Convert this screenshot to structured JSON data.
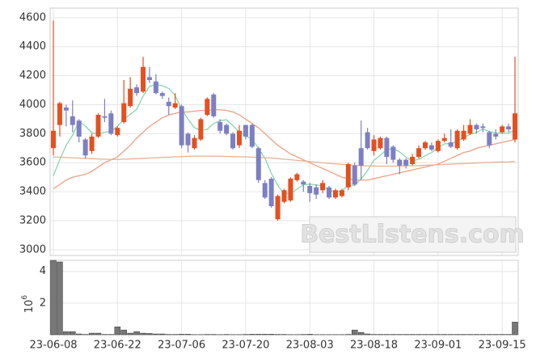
{
  "chart_data": {
    "type": "candlestick",
    "categories": [
      "23-06-08",
      null,
      null,
      null,
      null,
      null,
      null,
      null,
      null,
      null,
      "23-06-22",
      null,
      null,
      null,
      null,
      null,
      null,
      null,
      null,
      null,
      "23-07-06",
      null,
      null,
      null,
      null,
      null,
      null,
      null,
      null,
      null,
      "23-07-20",
      null,
      null,
      null,
      null,
      null,
      null,
      null,
      null,
      null,
      "23-08-03",
      null,
      null,
      null,
      null,
      null,
      null,
      null,
      null,
      null,
      "23-08-18",
      null,
      null,
      null,
      null,
      null,
      null,
      null,
      null,
      null,
      "23-09-01",
      null,
      null,
      null,
      null,
      null,
      null,
      null,
      null,
      null,
      "23-09-15",
      null,
      null
    ],
    "open": [
      3700,
      3860,
      3980,
      3920,
      3890,
      3760,
      3680,
      3780,
      3920,
      3940,
      3790,
      3880,
      3990,
      4120,
      4090,
      4190,
      4160,
      4080,
      4020,
      3980,
      3990,
      3800,
      3700,
      3760,
      3930,
      4070,
      3880,
      3860,
      3800,
      3720,
      3860,
      3860,
      3700,
      3460,
      3490,
      3210,
      3330,
      3340,
      3480,
      3470,
      3440,
      3430,
      3410,
      3430,
      3360,
      3370,
      3430,
      3580,
      3700,
      3810,
      3680,
      3700,
      3770,
      3710,
      3620,
      3620,
      3590,
      3640,
      3700,
      3720,
      3680,
      3750,
      3740,
      3700,
      3760,
      3800,
      3860,
      3850,
      3810,
      3800,
      3810,
      3850,
      3760
    ],
    "high": [
      4580,
      4020,
      4000,
      4030,
      3900,
      3770,
      3800,
      3940,
      4040,
      3960,
      3850,
      4170,
      4190,
      4140,
      4330,
      4260,
      4210,
      4090,
      4050,
      4080,
      4000,
      3810,
      3790,
      3910,
      4050,
      4080,
      3900,
      3870,
      3810,
      3860,
      3860,
      3870,
      3710,
      3480,
      3500,
      3380,
      3420,
      3500,
      3530,
      3480,
      3460,
      3450,
      3480,
      3440,
      3420,
      3420,
      3600,
      3600,
      3890,
      3840,
      3790,
      3780,
      3780,
      3720,
      3630,
      3630,
      3660,
      3720,
      3750,
      3740,
      3760,
      3800,
      3830,
      3830,
      3860,
      3900,
      3870,
      3870,
      3820,
      3830,
      3860,
      3870,
      4330
    ],
    "low": [
      3650,
      3780,
      3850,
      3810,
      3740,
      3630,
      3660,
      3770,
      3880,
      3790,
      3780,
      3870,
      3980,
      4060,
      4080,
      4150,
      4070,
      4040,
      3930,
      3970,
      3700,
      3670,
      3690,
      3750,
      3920,
      3910,
      3800,
      3790,
      3690,
      3700,
      3760,
      3700,
      3460,
      3350,
      3290,
      3200,
      3320,
      3330,
      3470,
      3400,
      3330,
      3350,
      3390,
      3350,
      3350,
      3360,
      3410,
      3440,
      3480,
      3690,
      3650,
      3690,
      3590,
      3600,
      3520,
      3560,
      3580,
      3630,
      3690,
      3680,
      3670,
      3740,
      3700,
      3690,
      3750,
      3790,
      3800,
      3810,
      3700,
      3760,
      3800,
      3810,
      3740
    ],
    "close": [
      3820,
      4010,
      3960,
      3860,
      3780,
      3650,
      3780,
      3930,
      3910,
      3800,
      3840,
      4010,
      4110,
      4080,
      4260,
      4170,
      4080,
      4060,
      3990,
      4010,
      3720,
      3720,
      3770,
      3900,
      4040,
      3920,
      3820,
      3800,
      3700,
      3820,
      3780,
      3710,
      3480,
      3360,
      3300,
      3370,
      3410,
      3490,
      3520,
      3450,
      3390,
      3380,
      3460,
      3360,
      3410,
      3410,
      3590,
      3450,
      3580,
      3700,
      3760,
      3770,
      3640,
      3620,
      3580,
      3580,
      3640,
      3700,
      3740,
      3690,
      3750,
      3770,
      3710,
      3820,
      3820,
      3860,
      3830,
      3840,
      3720,
      3780,
      3850,
      3830,
      3940
    ],
    "up_color": "#e4501f",
    "down_color": "#7d7fc3",
    "series": [
      {
        "color": "#86d7ac",
        "values": [
          3510,
          3620,
          3720,
          3790,
          3886,
          3852,
          3806,
          3800,
          3810,
          3814,
          3852,
          3898,
          3934,
          3968,
          4060,
          4126,
          4140,
          4130,
          4112,
          4062,
          3972,
          3900,
          3842,
          3824,
          3830,
          3870,
          3890,
          3896,
          3856,
          3812,
          3784,
          3762,
          3698,
          3630,
          3526,
          3444,
          3384,
          3386,
          3418,
          3448,
          3452,
          3446,
          3440,
          3408,
          3400,
          3404,
          3446,
          3444,
          3488,
          3546,
          3616,
          3652,
          3690,
          3698,
          3674,
          3638,
          3612,
          3624,
          3648,
          3670,
          3704,
          3730,
          3732,
          3748,
          3774,
          3796,
          3808,
          3834,
          3814,
          3806,
          3804,
          3804,
          3824
        ]
      },
      {
        "color": "#eba184",
        "values": [
          3420,
          3450,
          3480,
          3500,
          3510,
          3520,
          3540,
          3570,
          3600,
          3620,
          3640,
          3680,
          3720,
          3770,
          3810,
          3850,
          3880,
          3910,
          3930,
          3940,
          3950,
          3950,
          3955,
          3960,
          3960,
          3965,
          3965,
          3960,
          3950,
          3930,
          3900,
          3870,
          3840,
          3800,
          3760,
          3720,
          3690,
          3660,
          3640,
          3620,
          3600,
          3580,
          3560,
          3540,
          3520,
          3500,
          3490,
          3480,
          3480,
          3480,
          3490,
          3500,
          3510,
          3520,
          3530,
          3540,
          3550,
          3560,
          3570,
          3580,
          3590,
          3610,
          3630,
          3650,
          3670,
          3680,
          3700,
          3710,
          3720,
          3730,
          3740,
          3750,
          3760
        ]
      },
      {
        "color": "#e3b396",
        "values": [
          3640,
          3638,
          3636,
          3634,
          3632,
          3630,
          3628,
          3626,
          3624,
          3622,
          3622,
          3624,
          3626,
          3628,
          3630,
          3632,
          3634,
          3636,
          3638,
          3640,
          3642,
          3644,
          3645,
          3645,
          3645,
          3645,
          3644,
          3643,
          3642,
          3641,
          3640,
          3638,
          3636,
          3634,
          3632,
          3628,
          3624,
          3620,
          3616,
          3612,
          3608,
          3604,
          3600,
          3596,
          3592,
          3588,
          3585,
          3582,
          3580,
          3578,
          3577,
          3576,
          3576,
          3576,
          3577,
          3578,
          3579,
          3580,
          3582,
          3584,
          3586,
          3588,
          3590,
          3592,
          3594,
          3596,
          3598,
          3600,
          3602,
          3604,
          3605,
          3606,
          3608
        ]
      }
    ],
    "ylim": [
      2960,
      4666
    ],
    "yticks": [
      3000,
      3200,
      3400,
      3600,
      3800,
      4000,
      4200,
      4400,
      4600
    ],
    "grid": true,
    "volume": {
      "color": "#777777",
      "axis_label": {
        "base": "10",
        "exponent": "6"
      },
      "ylim": [
        0,
        4.7
      ],
      "yticks": [
        2,
        4
      ],
      "values": [
        4.7,
        4.6,
        0.2,
        0.2,
        0.05,
        0.02,
        0.1,
        0.1,
        0.02,
        0.02,
        0.5,
        0.3,
        0.1,
        0.2,
        0.1,
        0.08,
        0.05,
        0.05,
        0.02,
        0.02,
        0.03,
        0.03,
        0.01,
        0.01,
        0.02,
        0.02,
        0.01,
        0.02,
        0.01,
        0.01,
        0.02,
        0.03,
        0.03,
        0.03,
        0.03,
        0.02,
        0.02,
        0.01,
        0.01,
        0.02,
        0.03,
        0.01,
        0.01,
        0.01,
        0.01,
        0.01,
        0.02,
        0.3,
        0.15,
        0.05,
        0.02,
        0.02,
        0.02,
        0.02,
        0.02,
        0.02,
        0.02,
        0.02,
        0.02,
        0.02,
        0.02,
        0.02,
        0.02,
        0.02,
        0.02,
        0.02,
        0.02,
        0.02,
        0.02,
        0.02,
        0.02,
        0.02,
        0.8
      ]
    },
    "watermark": "BestListens.com"
  }
}
